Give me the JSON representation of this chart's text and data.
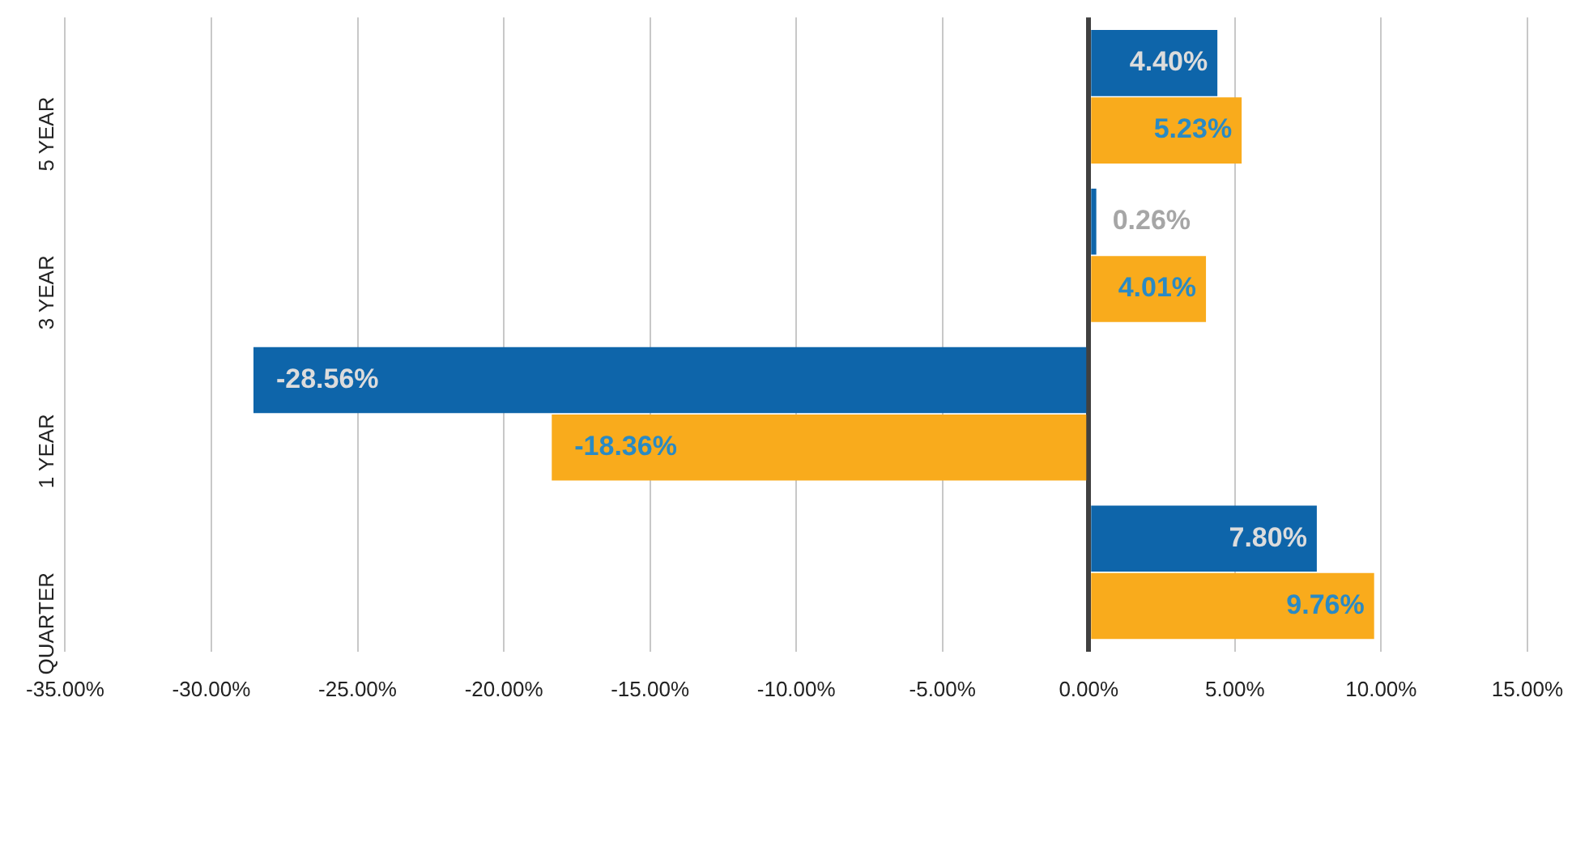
{
  "chart_data": {
    "type": "bar",
    "orientation": "horizontal",
    "categories": [
      "5 YEAR",
      "3 YEAR",
      "1 YEAR",
      "QUARTER"
    ],
    "series": [
      {
        "color": "#0e65aa",
        "values": [
          4.4,
          0.26,
          -28.56,
          7.8
        ],
        "value_labels": [
          "4.40%",
          "0.26%",
          "-28.56%",
          "7.80%"
        ]
      },
      {
        "color": "#f9ab1c",
        "values": [
          5.23,
          4.01,
          -18.36,
          9.76
        ],
        "value_labels": [
          "5.23%",
          "4.01%",
          "-18.36%",
          "9.76%"
        ]
      }
    ],
    "xlim": [
      -35,
      15
    ],
    "xticks": [
      {
        "value": -35,
        "label": "-35.00%"
      },
      {
        "value": -30,
        "label": "-30.00%"
      },
      {
        "value": -25,
        "label": "-25.00%"
      },
      {
        "value": -20,
        "label": "-20.00%"
      },
      {
        "value": -15,
        "label": "-15.00%"
      },
      {
        "value": -10,
        "label": "-10.00%"
      },
      {
        "value": -5,
        "label": "-5.00%"
      },
      {
        "value": 0,
        "label": "0.00%"
      },
      {
        "value": 5,
        "label": "5.00%"
      },
      {
        "value": 10,
        "label": "10.00%"
      },
      {
        "value": 15,
        "label": "15.00%"
      }
    ],
    "grid": "x",
    "legend": false
  }
}
